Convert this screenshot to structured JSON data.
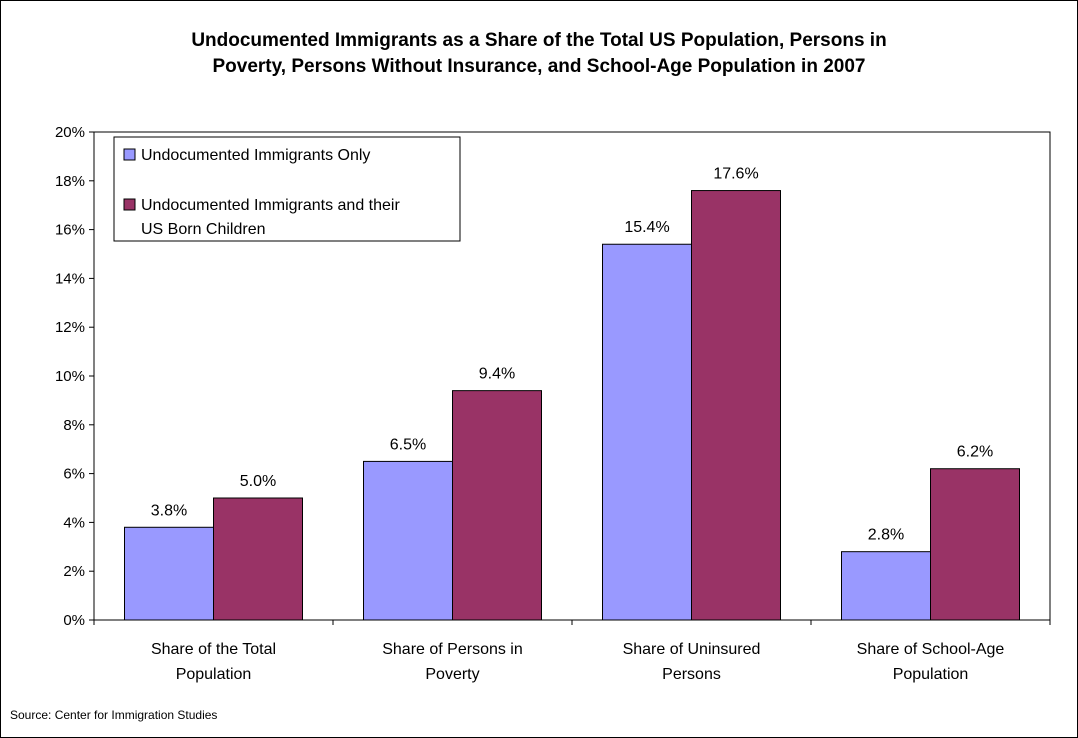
{
  "chart_data": {
    "type": "bar",
    "title_lines": [
      "Undocumented Immigrants as a Share of the Total US Population, Persons in",
      "Poverty, Persons Without Insurance, and School-Age Population in 2007"
    ],
    "categories": [
      [
        "Share of the Total",
        "Population"
      ],
      [
        "Share of Persons in",
        "Poverty"
      ],
      [
        "Share of Uninsured",
        "Persons"
      ],
      [
        "Share of School-Age",
        "Population"
      ]
    ],
    "series": [
      {
        "name": "Undocumented Immigrants Only",
        "name_lines": [
          "Undocumented Immigrants Only"
        ],
        "color": "#9999ff",
        "values": [
          3.8,
          6.5,
          15.4,
          2.8
        ],
        "labels": [
          "3.8%",
          "6.5%",
          "15.4%",
          "2.8%"
        ]
      },
      {
        "name": "Undocumented Immigrants and their US Born Children",
        "name_lines": [
          "Undocumented Immigrants and their",
          "US Born Children"
        ],
        "color": "#993366",
        "values": [
          5.0,
          9.4,
          17.6,
          6.2
        ],
        "labels": [
          "5.0%",
          "9.4%",
          "17.6%",
          "6.2%"
        ]
      }
    ],
    "yticks": [
      "0%",
      "2%",
      "4%",
      "6%",
      "8%",
      "10%",
      "12%",
      "14%",
      "16%",
      "18%",
      "20%"
    ],
    "ylim": [
      0,
      20
    ],
    "legend_position": "top-left",
    "grid": false
  },
  "source": "Source: Center for Immigration Studies"
}
